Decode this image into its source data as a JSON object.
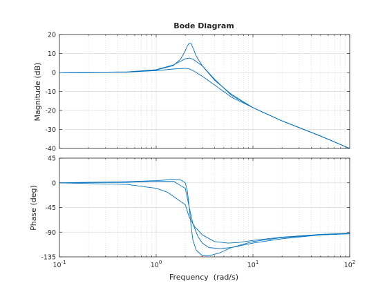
{
  "chart_data": {
    "type": "line",
    "title": "Bode Diagram",
    "xlabel": "Frequency  (rad/s)",
    "x_scale": "log",
    "xlim": [
      0.1,
      100
    ],
    "x_ticks": [
      {
        "base": "10",
        "exp": "-1",
        "value": 0.1
      },
      {
        "base": "10",
        "exp": "0",
        "value": 1
      },
      {
        "base": "10",
        "exp": "1",
        "value": 10
      },
      {
        "base": "10",
        "exp": "2",
        "value": 100
      }
    ],
    "grid": true,
    "line_color": "#0072bd",
    "panels": [
      {
        "id": "magnitude",
        "ylabel": "Magnitude (dB)",
        "ylim": [
          -40,
          20
        ],
        "yticks": [
          "20",
          "10",
          "0",
          "-10",
          "-20",
          "-30",
          "-40"
        ],
        "ytick_values": [
          20,
          10,
          0,
          -10,
          -20,
          -30,
          -40
        ],
        "series": [
          {
            "x": [
              0.1,
              0.5,
              1,
              1.5,
              1.8,
              2.0,
              2.1,
              2.2,
              2.3,
              2.4,
              2.6,
              3.0,
              4.0,
              6.0,
              10,
              20,
              50,
              100
            ],
            "y": [
              0,
              0.3,
              1.3,
              3.6,
              7.2,
              11.5,
              14.0,
              15.5,
              15.2,
              13.0,
              8.5,
              3.5,
              -4.0,
              -11.5,
              -18.5,
              -25.5,
              -33.5,
              -40.0
            ]
          },
          {
            "x": [
              0.1,
              0.5,
              1,
              1.5,
              2.0,
              2.2,
              2.4,
              3.0,
              4.0,
              6.0,
              10,
              20,
              50,
              100
            ],
            "y": [
              0,
              0.3,
              1.5,
              4.0,
              7.2,
              7.6,
              7.0,
              3.5,
              -3.5,
              -12.0,
              -18.5,
              -25.5,
              -33.5,
              -40.0
            ]
          },
          {
            "x": [
              0.1,
              0.5,
              1,
              1.5,
              2.0,
              2.2,
              2.5,
              3.0,
              4.0,
              6.0,
              10,
              20,
              50,
              100
            ],
            "y": [
              0,
              0.2,
              1.0,
              1.8,
              2.2,
              1.9,
              0.5,
              -2.0,
              -6.5,
              -13.0,
              -18.5,
              -25.5,
              -33.5,
              -40.0
            ]
          }
        ]
      },
      {
        "id": "phase",
        "ylabel": "Phase (deg)",
        "ylim": [
          -135,
          45
        ],
        "yticks": [
          "45",
          "0",
          "-45",
          "-90",
          "-135"
        ],
        "ytick_values": [
          45,
          0,
          -45,
          -90,
          -135
        ],
        "series": [
          {
            "x": [
              0.1,
              0.5,
              1,
              1.5,
              1.8,
              2.0,
              2.1,
              2.2,
              2.3,
              2.4,
              2.6,
              3.0,
              3.5,
              4.5,
              6.0,
              10,
              20,
              50,
              100
            ],
            "y": [
              0,
              2,
              4,
              6,
              5,
              0,
              -15,
              -45,
              -80,
              -105,
              -123,
              -133,
              -133,
              -128,
              -118,
              -107,
              -100,
              -95,
              -93
            ]
          },
          {
            "x": [
              0.1,
              0.5,
              1,
              1.5,
              2.0,
              2.2,
              2.4,
              2.7,
              3.0,
              3.5,
              4.5,
              6.0,
              10,
              20,
              50,
              100
            ],
            "y": [
              0,
              1,
              3,
              3,
              -10,
              -45,
              -75,
              -98,
              -110,
              -118,
              -120,
              -118,
              -110,
              -102,
              -95,
              -93
            ]
          },
          {
            "x": [
              0.1,
              0.5,
              1,
              1.3,
              1.6,
              2.0,
              2.2,
              2.5,
              3.0,
              4.0,
              5.5,
              7.0,
              10,
              20,
              50,
              100
            ],
            "y": [
              0,
              -3,
              -10,
              -17,
              -28,
              -40,
              -63,
              -80,
              -95,
              -107,
              -110,
              -109,
              -105,
              -99,
              -94,
              -92
            ]
          }
        ]
      }
    ]
  }
}
